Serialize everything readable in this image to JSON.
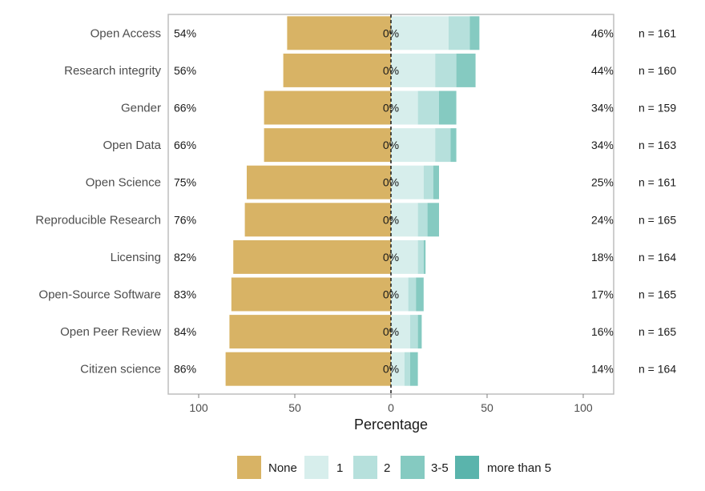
{
  "chart_data": {
    "type": "bar",
    "orientation": "horizontal-diverging",
    "xlabel": "Percentage",
    "xlim": [
      -115,
      115
    ],
    "xticks": [
      -100,
      -50,
      0,
      50,
      100
    ],
    "xtick_labels": [
      "100",
      "50",
      "0",
      "50",
      "100"
    ],
    "categories": [
      "Open Access",
      "Research integrity",
      "Gender",
      "Open Data",
      "Open Science",
      "Reproducible Research",
      "Licensing",
      "Open-Source Software",
      "Open Peer Review",
      "Citizen science"
    ],
    "series": [
      {
        "name": "None",
        "color": "#D8B365",
        "side": "left",
        "values": [
          54,
          56,
          66,
          66,
          75,
          76,
          82,
          83,
          84,
          86
        ]
      },
      {
        "name": "1",
        "color": "#D7EEEC",
        "side": "right",
        "values": [
          30,
          23,
          14,
          23,
          17,
          14,
          14,
          9,
          10,
          7
        ]
      },
      {
        "name": "2",
        "color": "#B6E0DC",
        "side": "right",
        "values": [
          11,
          11,
          11,
          8,
          5,
          5,
          3,
          4,
          4,
          3
        ]
      },
      {
        "name": "3-5",
        "color": "#85CAC1",
        "side": "right",
        "values": [
          5,
          10,
          9,
          3,
          3,
          6,
          1,
          4,
          2,
          4
        ]
      },
      {
        "name": "more than 5",
        "color": "#5AB4AC",
        "side": "right",
        "values": [
          0,
          0,
          0,
          0,
          0,
          0,
          0,
          0,
          0,
          0
        ]
      }
    ],
    "left_labels": [
      "54%",
      "56%",
      "66%",
      "66%",
      "75%",
      "76%",
      "82%",
      "83%",
      "84%",
      "86%"
    ],
    "center_labels": [
      "0%",
      "0%",
      "0%",
      "0%",
      "0%",
      "0%",
      "0%",
      "0%",
      "0%",
      "0%"
    ],
    "right_labels": [
      "46%",
      "44%",
      "34%",
      "34%",
      "25%",
      "24%",
      "18%",
      "17%",
      "16%",
      "14%"
    ],
    "n_labels": [
      "n = 161",
      "n = 160",
      "n = 159",
      "n = 163",
      "n = 161",
      "n = 165",
      "n = 164",
      "n = 165",
      "n = 165",
      "n = 164"
    ],
    "legend_position": "bottom",
    "grid": false
  }
}
